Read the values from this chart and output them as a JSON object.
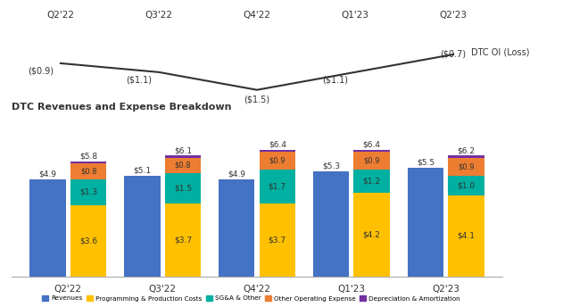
{
  "quarters": [
    "Q2'22",
    "Q3'22",
    "Q4'22",
    "Q1'23",
    "Q2'23"
  ],
  "line_values": [
    -0.9,
    -1.1,
    -1.5,
    -1.1,
    -0.7
  ],
  "line_labels": [
    "($0.9)",
    "($1.1)",
    "($1.5)",
    "($1.1)",
    "($0.7)"
  ],
  "line_label": "DTC OI (Loss)",
  "bar_title": "DTC Revenues and Expense Breakdown",
  "revenues": [
    4.9,
    5.1,
    4.9,
    5.3,
    5.5
  ],
  "programming": [
    3.6,
    3.7,
    3.7,
    4.2,
    4.1
  ],
  "sga": [
    1.3,
    1.5,
    1.7,
    1.2,
    1.0
  ],
  "other_op": [
    0.8,
    0.8,
    0.9,
    0.9,
    0.9
  ],
  "dep_amort": [
    0.1,
    0.1,
    0.1,
    0.1,
    0.1
  ],
  "total_labels": [
    "$5.8",
    "$6.1",
    "$6.4",
    "$6.4",
    "$6.2"
  ],
  "revenue_labels": [
    "$4.9",
    "$5.1",
    "$4.9",
    "$5.3",
    "$5.5"
  ],
  "programming_labels": [
    "$3.6",
    "$3.7",
    "$3.7",
    "$4.2",
    "$4.1"
  ],
  "sga_labels": [
    "$1.3",
    "$1.5",
    "$1.7",
    "$1.2",
    "$1.0"
  ],
  "other_op_labels": [
    "$0.8",
    "$0.8",
    "$0.9",
    "$0.9",
    "$0.9"
  ],
  "color_revenues": "#4472C4",
  "color_programming": "#FFC000",
  "color_sga": "#00B0A0",
  "color_other_op": "#ED7D31",
  "color_dep": "#7030A0",
  "background_color": "#FFFFFF",
  "legend_labels": [
    "Revenues",
    "Programming & Production Costs",
    "SG&A & Other",
    "Other Operating Expense",
    "Depreciation & Amortization"
  ],
  "label_offsets_x": [
    -0.18,
    -0.15,
    0.0,
    -0.15,
    0.05
  ],
  "label_offsets_y": [
    0.05,
    0.05,
    -0.12,
    0.05,
    0.05
  ]
}
